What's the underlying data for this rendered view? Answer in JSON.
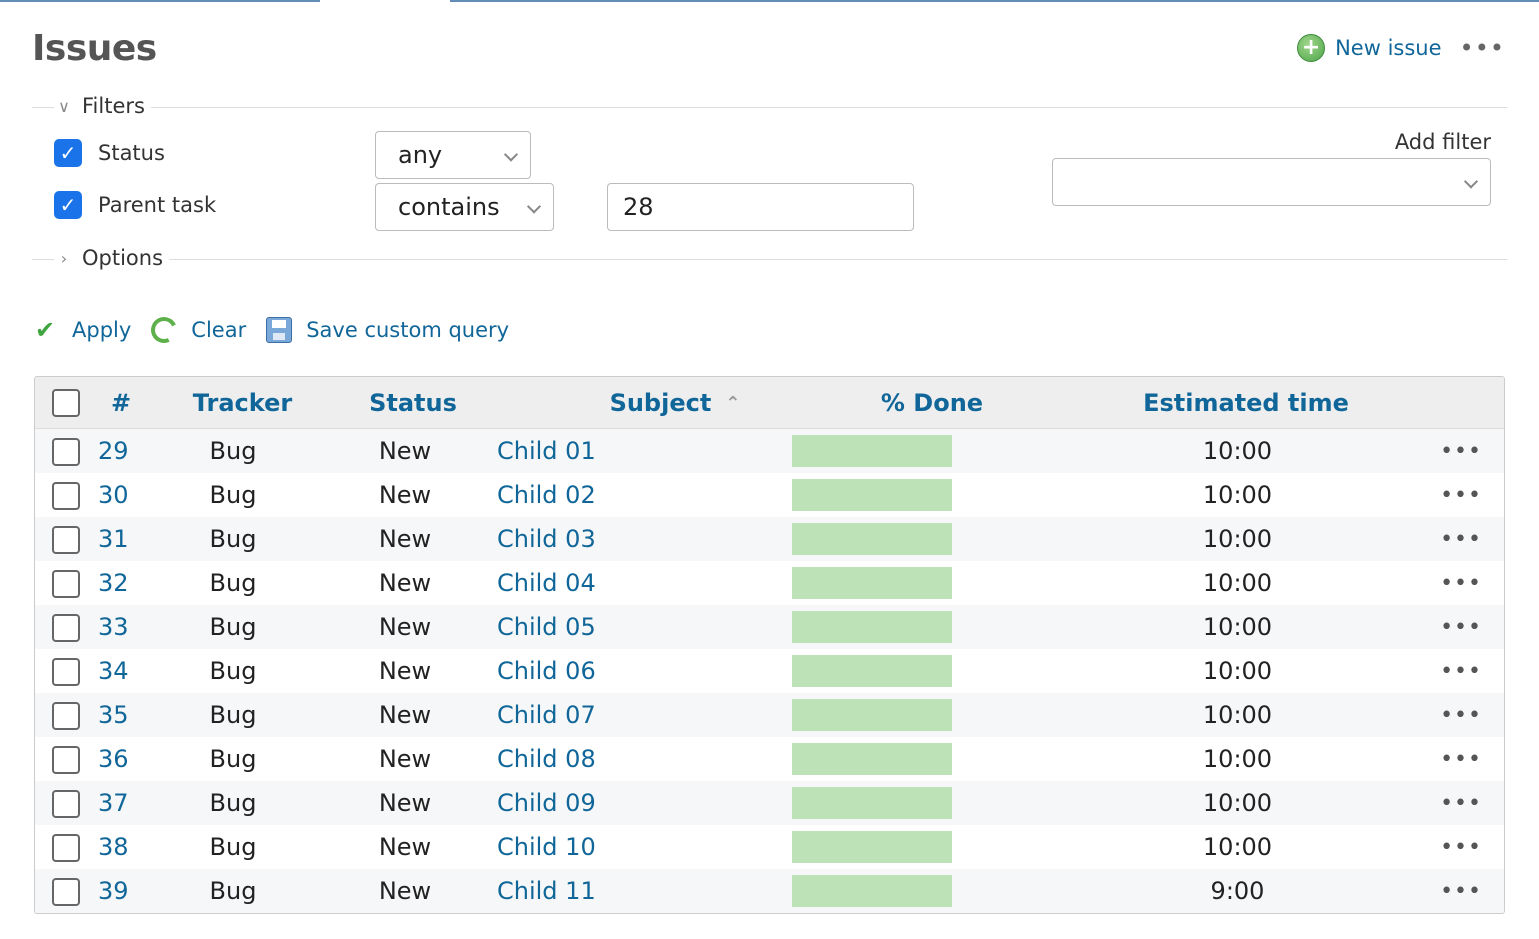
{
  "page": {
    "title": "Issues",
    "new_issue_label": "New issue",
    "more_label": "•••"
  },
  "filters": {
    "legend": "Filters",
    "status": {
      "label": "Status",
      "checked": true,
      "operator": "any"
    },
    "parent_task": {
      "label": "Parent task",
      "checked": true,
      "operator": "contains",
      "value": "28"
    },
    "add_filter_label": "Add filter",
    "add_filter_value": ""
  },
  "options": {
    "legend": "Options"
  },
  "actions": {
    "apply": "Apply",
    "clear": "Clear",
    "save": "Save custom query"
  },
  "table": {
    "columns": {
      "id": "#",
      "tracker": "Tracker",
      "status": "Status",
      "subject": "Subject",
      "done": "% Done",
      "estimated": "Estimated time"
    },
    "rows": [
      {
        "id": "29",
        "tracker": "Bug",
        "status": "New",
        "subject": "Child 01",
        "done": 0,
        "estimated": "10:00"
      },
      {
        "id": "30",
        "tracker": "Bug",
        "status": "New",
        "subject": "Child 02",
        "done": 0,
        "estimated": "10:00"
      },
      {
        "id": "31",
        "tracker": "Bug",
        "status": "New",
        "subject": "Child 03",
        "done": 0,
        "estimated": "10:00"
      },
      {
        "id": "32",
        "tracker": "Bug",
        "status": "New",
        "subject": "Child 04",
        "done": 0,
        "estimated": "10:00"
      },
      {
        "id": "33",
        "tracker": "Bug",
        "status": "New",
        "subject": "Child 05",
        "done": 0,
        "estimated": "10:00"
      },
      {
        "id": "34",
        "tracker": "Bug",
        "status": "New",
        "subject": "Child 06",
        "done": 0,
        "estimated": "10:00"
      },
      {
        "id": "35",
        "tracker": "Bug",
        "status": "New",
        "subject": "Child 07",
        "done": 0,
        "estimated": "10:00"
      },
      {
        "id": "36",
        "tracker": "Bug",
        "status": "New",
        "subject": "Child 08",
        "done": 0,
        "estimated": "10:00"
      },
      {
        "id": "37",
        "tracker": "Bug",
        "status": "New",
        "subject": "Child 09",
        "done": 0,
        "estimated": "10:00"
      },
      {
        "id": "38",
        "tracker": "Bug",
        "status": "New",
        "subject": "Child 10",
        "done": 0,
        "estimated": "10:00"
      },
      {
        "id": "39",
        "tracker": "Bug",
        "status": "New",
        "subject": "Child 11",
        "done": 0,
        "estimated": "9:00"
      }
    ]
  },
  "colors": {
    "link": "#116699",
    "checkbox_checked": "#1a73e8",
    "progress_empty": "#bde2b7",
    "header_bg": "#eeeeee"
  }
}
